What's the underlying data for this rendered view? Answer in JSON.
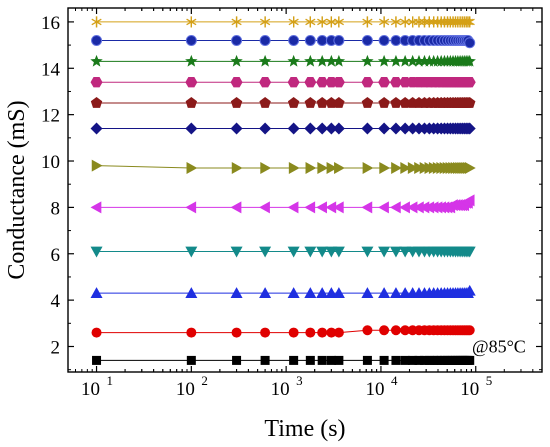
{
  "chart_data": {
    "type": "scatter",
    "xlabel": "Time (s)",
    "ylabel": "Conductance (mS)",
    "xscale": "log",
    "xlim": [
      5,
      500000
    ],
    "ylim": [
      0.9,
      16.6
    ],
    "annotation": "@85°C",
    "x_ticks": [
      {
        "value": 10,
        "base": "10",
        "exp": "1"
      },
      {
        "value": 100,
        "base": "10",
        "exp": "2"
      },
      {
        "value": 1000,
        "base": "10",
        "exp": "3"
      },
      {
        "value": 10000,
        "base": "10",
        "exp": "4"
      },
      {
        "value": 100000,
        "base": "10",
        "exp": "5"
      }
    ],
    "y_ticks": [
      2,
      4,
      6,
      8,
      10,
      12,
      14,
      16
    ],
    "x": [
      10,
      100,
      300,
      600,
      1200,
      1800,
      2400,
      3000,
      3600,
      7200,
      10800,
      14400,
      18000,
      21600,
      25200,
      28800,
      32400,
      36000,
      39600,
      43200,
      46800,
      50400,
      54000,
      57600,
      61200,
      64800,
      68400,
      72000,
      75600,
      79200,
      82800,
      86400
    ],
    "series": [
      {
        "values": [
          1.4,
          1.4,
          1.4,
          1.4,
          1.4,
          1.4,
          1.4,
          1.4,
          1.4,
          1.4,
          1.4,
          1.4,
          1.4,
          1.4,
          1.4,
          1.4,
          1.4,
          1.4,
          1.4,
          1.4,
          1.4,
          1.4,
          1.4,
          1.4,
          1.4,
          1.4,
          1.4,
          1.4,
          1.4,
          1.4,
          1.4,
          1.4
        ],
        "color": "#000000",
        "marker": "square"
      },
      {
        "values": [
          2.6,
          2.6,
          2.6,
          2.6,
          2.6,
          2.6,
          2.6,
          2.6,
          2.6,
          2.7,
          2.7,
          2.7,
          2.7,
          2.7,
          2.7,
          2.7,
          2.7,
          2.7,
          2.7,
          2.7,
          2.7,
          2.7,
          2.7,
          2.7,
          2.7,
          2.7,
          2.7,
          2.7,
          2.7,
          2.7,
          2.7,
          2.7
        ],
        "color": "#e00000",
        "marker": "circle"
      },
      {
        "values": [
          4.3,
          4.3,
          4.3,
          4.3,
          4.3,
          4.3,
          4.3,
          4.3,
          4.3,
          4.3,
          4.3,
          4.3,
          4.3,
          4.3,
          4.3,
          4.3,
          4.3,
          4.3,
          4.3,
          4.3,
          4.3,
          4.3,
          4.3,
          4.3,
          4.3,
          4.3,
          4.3,
          4.3,
          4.3,
          4.3,
          4.3,
          4.4
        ],
        "color": "#1f2fe0",
        "marker": "triangle-up"
      },
      {
        "values": [
          6.1,
          6.1,
          6.1,
          6.1,
          6.1,
          6.1,
          6.1,
          6.1,
          6.1,
          6.1,
          6.1,
          6.1,
          6.1,
          6.1,
          6.1,
          6.1,
          6.1,
          6.1,
          6.1,
          6.1,
          6.1,
          6.1,
          6.1,
          6.1,
          6.1,
          6.1,
          6.1,
          6.1,
          6.1,
          6.1,
          6.1,
          6.1
        ],
        "color": "#138a8a",
        "marker": "triangle-down"
      },
      {
        "values": [
          8.0,
          8.0,
          8.0,
          8.0,
          8.0,
          8.0,
          8.0,
          8.0,
          8.0,
          8.0,
          8.0,
          8.0,
          8.0,
          8.0,
          8.0,
          8.0,
          8.0,
          8.0,
          8.0,
          8.0,
          8.0,
          8.0,
          8.0,
          8.1,
          8.1,
          8.1,
          8.1,
          8.1,
          8.1,
          8.2,
          8.2,
          8.3
        ],
        "color": "#d535e8",
        "marker": "triangle-left"
      },
      {
        "values": [
          9.8,
          9.7,
          9.7,
          9.7,
          9.7,
          9.7,
          9.7,
          9.7,
          9.7,
          9.7,
          9.7,
          9.7,
          9.7,
          9.7,
          9.7,
          9.7,
          9.7,
          9.7,
          9.7,
          9.7,
          9.7,
          9.7,
          9.7,
          9.7,
          9.7,
          9.7,
          9.7,
          9.7,
          9.7,
          9.7,
          9.7,
          9.7
        ],
        "color": "#8a8a1e",
        "marker": "triangle-right"
      },
      {
        "values": [
          11.4,
          11.4,
          11.4,
          11.4,
          11.4,
          11.4,
          11.4,
          11.4,
          11.4,
          11.4,
          11.4,
          11.4,
          11.4,
          11.4,
          11.4,
          11.4,
          11.4,
          11.4,
          11.4,
          11.4,
          11.4,
          11.4,
          11.4,
          11.4,
          11.4,
          11.4,
          11.4,
          11.4,
          11.4,
          11.4,
          11.4,
          11.4
        ],
        "color": "#141486",
        "marker": "diamond"
      },
      {
        "values": [
          12.5,
          12.5,
          12.5,
          12.5,
          12.5,
          12.5,
          12.5,
          12.5,
          12.5,
          12.5,
          12.5,
          12.5,
          12.5,
          12.5,
          12.5,
          12.5,
          12.5,
          12.5,
          12.5,
          12.5,
          12.5,
          12.5,
          12.5,
          12.5,
          12.5,
          12.5,
          12.5,
          12.5,
          12.5,
          12.5,
          12.5,
          12.5
        ],
        "color": "#8b1a1a",
        "marker": "pentagon"
      },
      {
        "values": [
          13.4,
          13.4,
          13.4,
          13.4,
          13.4,
          13.4,
          13.4,
          13.4,
          13.4,
          13.4,
          13.4,
          13.4,
          13.4,
          13.4,
          13.4,
          13.4,
          13.4,
          13.4,
          13.4,
          13.4,
          13.4,
          13.4,
          13.4,
          13.4,
          13.4,
          13.4,
          13.4,
          13.4,
          13.4,
          13.4,
          13.4,
          13.4
        ],
        "color": "#c0287e",
        "marker": "hexagon"
      },
      {
        "values": [
          14.3,
          14.3,
          14.3,
          14.3,
          14.3,
          14.3,
          14.3,
          14.3,
          14.3,
          14.3,
          14.3,
          14.3,
          14.3,
          14.3,
          14.3,
          14.3,
          14.3,
          14.3,
          14.3,
          14.3,
          14.3,
          14.3,
          14.3,
          14.3,
          14.3,
          14.3,
          14.3,
          14.3,
          14.3,
          14.3,
          14.3,
          14.3
        ],
        "color": "#1a7a1a",
        "marker": "star"
      },
      {
        "values": [
          15.2,
          15.2,
          15.2,
          15.2,
          15.2,
          15.2,
          15.2,
          15.2,
          15.2,
          15.2,
          15.2,
          15.2,
          15.2,
          15.2,
          15.2,
          15.2,
          15.2,
          15.2,
          15.2,
          15.2,
          15.2,
          15.2,
          15.2,
          15.2,
          15.2,
          15.2,
          15.2,
          15.2,
          15.2,
          15.2,
          15.2,
          15.1
        ],
        "color": "#1a2aa6",
        "marker": "sphere"
      },
      {
        "values": [
          16.0,
          16.0,
          16.0,
          16.0,
          16.0,
          16.0,
          16.0,
          16.0,
          16.0,
          16.0,
          16.0,
          16.0,
          16.0,
          16.0,
          16.0,
          16.0,
          16.0,
          16.0,
          16.0,
          16.0,
          16.0,
          16.0,
          16.0,
          16.0,
          16.0,
          16.0,
          16.0,
          16.0,
          16.0,
          16.0,
          16.0,
          16.0
        ],
        "color": "#d4a017",
        "marker": "asterisk"
      }
    ]
  }
}
